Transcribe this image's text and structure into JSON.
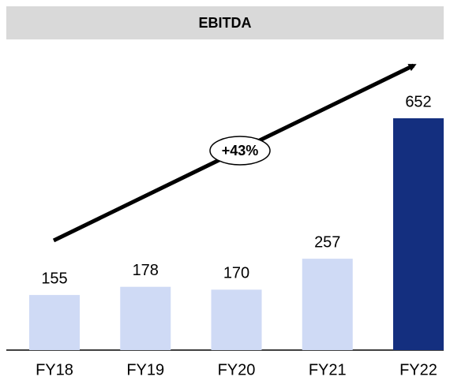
{
  "chart_data": {
    "type": "bar",
    "title": "EBITDA",
    "categories": [
      "FY18",
      "FY19",
      "FY20",
      "FY21",
      "FY22"
    ],
    "values": [
      155,
      178,
      170,
      257,
      652
    ],
    "colors": [
      "#cfdaf5",
      "#cfdaf5",
      "#cfdaf5",
      "#cfdaf5",
      "#142f7f"
    ],
    "annotation": "+43%"
  }
}
